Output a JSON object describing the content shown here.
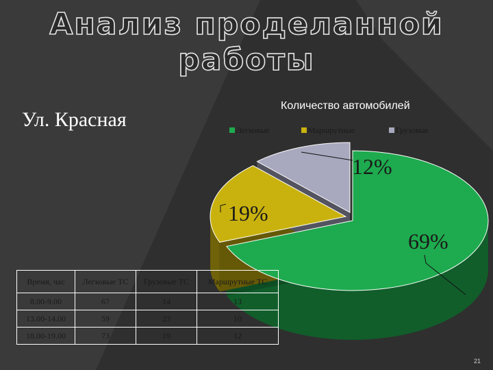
{
  "title_line1": "Анализ проделанной",
  "title_line2": "работы",
  "subtitle": "Ул. Красная",
  "page_number": "21",
  "colors": {
    "background": "#2f2f2f",
    "light_band": "#3c3c3c"
  },
  "chart_data": {
    "type": "pie",
    "title": "Количество автомобилей",
    "legend_position": "top",
    "series": [
      {
        "name": "Легковые",
        "value": 69,
        "label": "69%",
        "color": "#1eaa4e"
      },
      {
        "name": "Маршрутные",
        "value": 19,
        "label": "19%",
        "color": "#c9b20e"
      },
      {
        "name": "Грузовые",
        "value": 12,
        "label": "12%",
        "color": "#a8a8bf"
      }
    ]
  },
  "table": {
    "headers": [
      "Время, час",
      "Легковые ТС",
      "Грузовые ТС",
      "Маршрутные ТС"
    ],
    "rows": [
      [
        "8.00-9.00",
        "67",
        "14",
        "13"
      ],
      [
        "13.00-14.00",
        "59",
        "23",
        "10"
      ],
      [
        "18.00-19.00",
        "73",
        "19",
        "12"
      ]
    ]
  }
}
